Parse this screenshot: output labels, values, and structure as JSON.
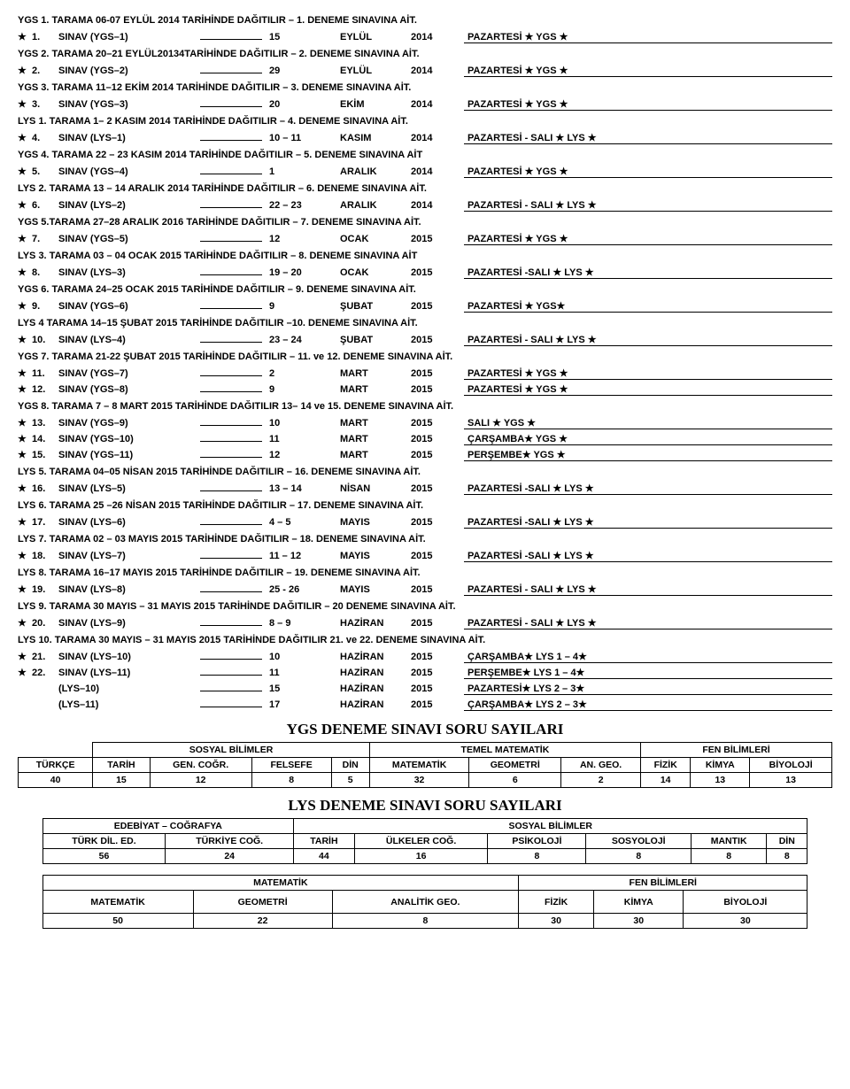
{
  "headers": [
    "YGS  1. TARAMA 06-07 EYLÜL 2014 TARİHİNDE DAĞITILIR – 1. DENEME SINAVINA AİT.",
    "YGS  2. TARAMA 20–21 EYLÜL20134TARİHİNDE DAĞITILIR – 2. DENEME SINAVINA AİT.",
    "YGS  3. TARAMA 11–12 EKİM 2014 TARİHİNDE DAĞITILIR – 3. DENEME SINAVINA AİT.",
    "LYS  1. TARAMA 1– 2 KASIM  2014 TARİHİNDE DAĞITILIR – 4. DENEME SINAVINA AİT.",
    "YGS  4. TARAMA 22 – 23 KASIM  2014 TARİHİNDE DAĞITILIR – 5. DENEME SINAVINA AİT",
    "LYS  2. TARAMA 13 – 14 ARALIK 2014 TARİHİNDE DAĞITILIR – 6. DENEME SINAVINA AİT.",
    "YGS  5.TARAMA 27–28 ARALIK 2016 TARİHİNDE DAĞITILIR – 7. DENEME SINAVINA AİT.",
    "LYS  3. TARAMA  03 – 04 OCAK  2015 TARİHİNDE DAĞITILIR – 8. DENEME SINAVINA AİT",
    "YGS  6. TARAMA 24–25  OCAK 2015 TARİHİNDE DAĞITILIR – 9. DENEME SINAVINA AİT.",
    "LYS  4 TARAMA 14–15 ŞUBAT 2015 TARİHİNDE DAĞITILIR –10. DENEME SINAVINA AİT.",
    "YGS  7. TARAMA 21-22 ŞUBAT 2015 TARİHİNDE DAĞITILIR – 11. ve 12.  DENEME SINAVINA AİT.",
    "YGS  8. TARAMA 7 – 8 MART 2015 TARİHİNDE DAĞITILIR  13– 14 ve 15. DENEME SINAVINA AİT.",
    "LYS  5. TARAMA  04–05 NİSAN  2015 TARİHİNDE DAĞITILIR – 16. DENEME SINAVINA AİT.",
    "LYS  6. TARAMA 25 –26 NİSAN 2015 TARİHİNDE DAĞITILIR – 17. DENEME SINAVINA AİT.",
    "LYS  7. TARAMA 02 – 03 MAYIS 2015 TARİHİNDE DAĞITILIR – 18. DENEME SINAVINA AİT.",
    "LYS  8. TARAMA  16–17 MAYIS 2015 TARİHİNDE DAĞITILIR – 19. DENEME SINAVINA AİT.",
    "LYS  9. TARAMA  30 MAYIS – 31 MAYIS 2015 TARİHİNDE DAĞITILIR – 20 DENEME SINAVINA AİT.",
    "LYS  10. TARAMA 30 MAYIS – 31 MAYIS 2015 TARİHİNDE DAĞITILIR   21. ve  22. DENEME SINAVINA AİT."
  ],
  "rows": [
    {
      "star": "★",
      "num": "1.",
      "name": "SINAV  (YGS–1)",
      "date": "15",
      "month": "EYLÜL",
      "year": "2014",
      "day": "PAZARTESİ ★ YGS ★"
    },
    {
      "star": "★",
      "num": "2.",
      "name": "SINAV  (YGS–2)",
      "date": "29",
      "month": "EYLÜL",
      "year": "2014",
      "day": "PAZARTESİ ★ YGS ★"
    },
    {
      "star": "★",
      "num": "3.",
      "name": "SINAV     (YGS–3)",
      "date": "20",
      "month": "EKİM",
      "year": "2014",
      "day": "PAZARTESİ ★ YGS ★"
    },
    {
      "star": "★",
      "num": "4.",
      "name": "SINAV  (LYS–1)",
      "date": "10 – 11",
      "month": "KASIM",
      "year": "2014",
      "day": "PAZARTESİ - SALI ★ LYS ★"
    },
    {
      "star": "★",
      "num": "5.",
      "name": "SINAV  (YGS–4)",
      "date": "1",
      "month": "ARALIK",
      "year": "2014",
      "day": "PAZARTESİ ★ YGS ★"
    },
    {
      "star": "★",
      "num": "6.",
      "name": "SINAV  (LYS–2)",
      "date": "22 – 23",
      "month": "ARALIK",
      "year": "2014",
      "day": "PAZARTESİ - SALI   ★ LYS ★"
    },
    {
      "star": "★",
      "num": "7.",
      "name": "SINAV  (YGS–5)",
      "date": "12",
      "month": "OCAK",
      "year": "2015",
      "day": "PAZARTESİ ★ YGS ★"
    },
    {
      "star": "★",
      "num": "8.",
      "name": "SINAV  (LYS–3)",
      "date": "19 – 20",
      "month": "OCAK",
      "year": "2015",
      "day": "PAZARTESİ -SALI ★ LYS ★"
    },
    {
      "star": "★",
      "num": "9.",
      "name": "SINAV  (YGS–6)",
      "date": "9",
      "month": "ŞUBAT",
      "year": "2015",
      "day": "PAZARTESİ ★ YGS★"
    },
    {
      "star": "★",
      "num": "10.",
      "name": "SINAV  (LYS–4)",
      "date": "23 – 24",
      "month": "ŞUBAT",
      "year": "2015",
      "day": "PAZARTESİ - SALI  ★ LYS ★"
    },
    {
      "star": "★",
      "num": "11.",
      "name": "SINAV  (YGS–7)",
      "date": "2",
      "month": "MART",
      "year": "2015",
      "day": "PAZARTESİ ★ YGS ★"
    },
    {
      "star": "★",
      "num": "12.",
      "name": "SINAV  (YGS–8)",
      "date": "9",
      "month": "MART",
      "year": "2015",
      "day": "PAZARTESİ ★ YGS ★"
    },
    {
      "star": "★",
      "num": "13.",
      "name": "SINAV  (YGS–9)",
      "date": "10",
      "month": "MART",
      "year": "2015",
      "day": "SALI ★ YGS ★"
    },
    {
      "star": "★",
      "num": "14.",
      "name": "SINAV  (YGS–10)",
      "date": "11",
      "month": "MART",
      "year": "2015",
      "day": "ÇARŞAMBA★ YGS ★"
    },
    {
      "star": "★",
      "num": "15.",
      "name": "SINAV  (YGS–11)",
      "date": "12",
      "month": "MART",
      "year": "2015",
      "day": "PERŞEMBE★ YGS ★"
    },
    {
      "star": "★",
      "num": "16.",
      "name": "SINAV  (LYS–5)",
      "date": "13 – 14",
      "month": "NİSAN",
      "year": "2015",
      "day": "PAZARTESİ -SALI  ★ LYS ★"
    },
    {
      "star": "★",
      "num": "17.",
      "name": "SINAV  (LYS–6)",
      "date": "4 –  5",
      "month": "MAYIS",
      "year": "2015",
      "day": "PAZARTESİ -SALI    ★ LYS ★"
    },
    {
      "star": "★",
      "num": "18.",
      "name": "SINAV  (LYS–7)",
      "date": "11 – 12",
      "month": "MAYIS",
      "year": "2015",
      "day": "PAZARTESİ -SALI ★ LYS ★"
    },
    {
      "star": "★",
      "num": "19.",
      "name": "SINAV  (LYS–8)",
      "date": "25 - 26",
      "month": "MAYIS",
      "year": "2015",
      "day": "PAZARTESİ - SALI ★ LYS ★"
    },
    {
      "star": "★",
      "num": "20.",
      "name": "SINAV  (LYS–9)",
      "date": "8 – 9",
      "month": "HAZİRAN",
      "year": "2015",
      "day": "PAZARTESİ - SALI ★ LYS ★"
    },
    {
      "star": "★",
      "num": "21.",
      "name": "SINAV  (LYS–10)",
      "date": "10",
      "month": "HAZİRAN",
      "year": "2015",
      "day": "ÇARŞAMBA★ LYS 1 – 4★"
    },
    {
      "star": "★",
      "num": "22.",
      "name": "SINAV  (LYS–11)",
      "date": "11",
      "month": "HAZİRAN",
      "year": "2015",
      "day": "PERŞEMBE★ LYS 1 – 4★"
    },
    {
      "star": "",
      "num": "",
      "name": "(LYS–10)",
      "date": "15",
      "month": "HAZİRAN",
      "year": "2015",
      "day": "PAZARTESİ★ LYS 2 – 3★"
    },
    {
      "star": "",
      "num": "",
      "name": "(LYS–11)",
      "date": "17",
      "month": "HAZİRAN",
      "year": "2015",
      "day": "ÇARŞAMBA★ LYS 2 – 3★"
    }
  ],
  "layout": [
    {
      "type": "h",
      "i": 0
    },
    {
      "type": "r",
      "i": 0
    },
    {
      "type": "h",
      "i": 1
    },
    {
      "type": "r",
      "i": 1
    },
    {
      "type": "h",
      "i": 2
    },
    {
      "type": "r",
      "i": 2
    },
    {
      "type": "h",
      "i": 3
    },
    {
      "type": "r",
      "i": 3
    },
    {
      "type": "h",
      "i": 4
    },
    {
      "type": "r",
      "i": 4
    },
    {
      "type": "h",
      "i": 5
    },
    {
      "type": "r",
      "i": 5
    },
    {
      "type": "h",
      "i": 6
    },
    {
      "type": "r",
      "i": 6
    },
    {
      "type": "h",
      "i": 7
    },
    {
      "type": "r",
      "i": 7
    },
    {
      "type": "h",
      "i": 8
    },
    {
      "type": "r",
      "i": 8
    },
    {
      "type": "h",
      "i": 9
    },
    {
      "type": "r",
      "i": 9
    },
    {
      "type": "h",
      "i": 10
    },
    {
      "type": "r",
      "i": 10
    },
    {
      "type": "r",
      "i": 11
    },
    {
      "type": "h",
      "i": 11
    },
    {
      "type": "r",
      "i": 12
    },
    {
      "type": "r",
      "i": 13
    },
    {
      "type": "r",
      "i": 14
    },
    {
      "type": "h",
      "i": 12
    },
    {
      "type": "r",
      "i": 15
    },
    {
      "type": "h",
      "i": 13
    },
    {
      "type": "r",
      "i": 16
    },
    {
      "type": "h",
      "i": 14
    },
    {
      "type": "r",
      "i": 17
    },
    {
      "type": "h",
      "i": 15
    },
    {
      "type": "r",
      "i": 18
    },
    {
      "type": "h",
      "i": 16
    },
    {
      "type": "r",
      "i": 19
    },
    {
      "type": "h",
      "i": 17
    },
    {
      "type": "r",
      "i": 20
    },
    {
      "type": "r",
      "i": 21
    },
    {
      "type": "r",
      "i": 22
    },
    {
      "type": "r",
      "i": 23
    }
  ],
  "title1": "YGS DENEME SINAVI SORU SAYILARI",
  "title2": "LYS DENEME SINAVI SORU SAYILARI",
  "ygs_table": {
    "group_headers": [
      "",
      "SOSYAL BİLİMLER",
      "TEMEL MATEMATİK",
      "FEN BİLİMLERİ"
    ],
    "group_spans": [
      1,
      4,
      3,
      3
    ],
    "cols": [
      "TÜRKÇE",
      "TARİH",
      "GEN. COĞR.",
      "FELSEFE",
      "DİN",
      "MATEMATİK",
      "GEOMETRİ",
      "AN. GEO.",
      "FİZİK",
      "KİMYA",
      "BİYOLOJİ"
    ],
    "vals": [
      "40",
      "15",
      "12",
      "8",
      "5",
      "32",
      "6",
      "2",
      "14",
      "13",
      "13"
    ]
  },
  "lys_table1": {
    "group_headers": [
      "EDEBİYAT – COĞRAFYA",
      "SOSYAL BİLİMLER"
    ],
    "group_spans": [
      2,
      6
    ],
    "cols": [
      "TÜRK DİL. ED.",
      "TÜRKİYE COĞ.",
      "TARİH",
      "ÜLKELER COĞ.",
      "PSİKOLOJİ",
      "SOSYOLOJİ",
      "MANTIK",
      "DİN"
    ],
    "vals": [
      "56",
      "24",
      "44",
      "16",
      "8",
      "8",
      "8",
      "8"
    ]
  },
  "lys_table2": {
    "group_headers": [
      "MATEMATİK",
      "FEN BİLİMLERİ"
    ],
    "group_spans": [
      3,
      3
    ],
    "cols": [
      "MATEMATİK",
      "GEOMETRİ",
      "ANALİTİK GEO.",
      "FİZİK",
      "KİMYA",
      "BİYOLOJİ"
    ],
    "vals": [
      "50",
      "22",
      "8",
      "30",
      "30",
      "30"
    ]
  }
}
